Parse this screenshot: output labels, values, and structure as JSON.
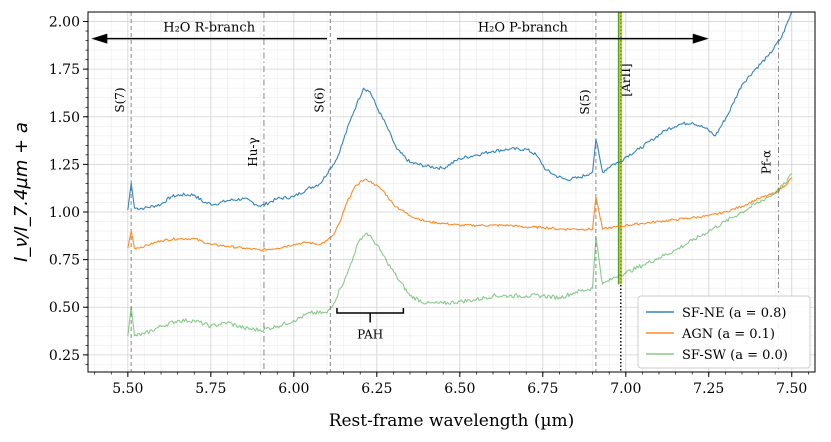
{
  "chart_data": {
    "type": "line",
    "xlabel": "Rest-frame wavelength (µm)",
    "ylabel": "I_ν/I_7.4µm + a",
    "xlim": [
      5.38,
      7.57
    ],
    "ylim": [
      0.16,
      2.05
    ],
    "xticks": [
      "5.50",
      "5.75",
      "6.00",
      "6.25",
      "6.50",
      "6.75",
      "7.00",
      "7.25",
      "7.50"
    ],
    "xtick_values": [
      5.5,
      5.75,
      6.0,
      6.25,
      6.5,
      6.75,
      7.0,
      7.25,
      7.5
    ],
    "yticks": [
      "0.25",
      "0.50",
      "0.75",
      "1.00",
      "1.25",
      "1.50",
      "1.75",
      "2.00"
    ],
    "ytick_values": [
      0.25,
      0.5,
      0.75,
      1.0,
      1.25,
      1.5,
      1.75,
      2.0
    ],
    "grid": true,
    "legend_position": "lower-right",
    "series": [
      {
        "name": "SF-NE (a = 0.8)",
        "color": "#1f77b4",
        "x": [
          5.5,
          5.51,
          5.52,
          5.55,
          5.6,
          5.63,
          5.66,
          5.7,
          5.73,
          5.76,
          5.8,
          5.85,
          5.9,
          5.95,
          6.0,
          6.04,
          6.08,
          6.11,
          6.13,
          6.15,
          6.17,
          6.19,
          6.21,
          6.23,
          6.25,
          6.28,
          6.31,
          6.35,
          6.4,
          6.45,
          6.5,
          6.55,
          6.6,
          6.65,
          6.7,
          6.73,
          6.76,
          6.79,
          6.82,
          6.86,
          6.9,
          6.91,
          6.93,
          6.96,
          6.98,
          7.0,
          7.04,
          7.08,
          7.12,
          7.16,
          7.2,
          7.24,
          7.27,
          7.31,
          7.35,
          7.39,
          7.43,
          7.47,
          7.5
        ],
        "y": [
          1.01,
          1.15,
          1.02,
          1.02,
          1.04,
          1.08,
          1.09,
          1.09,
          1.05,
          1.04,
          1.06,
          1.07,
          1.03,
          1.07,
          1.08,
          1.12,
          1.15,
          1.23,
          1.28,
          1.38,
          1.48,
          1.57,
          1.65,
          1.63,
          1.55,
          1.45,
          1.33,
          1.26,
          1.24,
          1.23,
          1.28,
          1.3,
          1.32,
          1.33,
          1.33,
          1.3,
          1.22,
          1.19,
          1.17,
          1.18,
          1.21,
          1.38,
          1.21,
          1.25,
          1.26,
          1.29,
          1.33,
          1.38,
          1.43,
          1.46,
          1.47,
          1.44,
          1.4,
          1.52,
          1.67,
          1.75,
          1.82,
          1.92,
          2.05
        ]
      },
      {
        "name": "AGN (a = 0.1)",
        "color": "#ff7f0e",
        "x": [
          5.5,
          5.51,
          5.52,
          5.55,
          5.6,
          5.65,
          5.7,
          5.75,
          5.8,
          5.85,
          5.9,
          5.95,
          6.0,
          6.04,
          6.08,
          6.1,
          6.12,
          6.14,
          6.16,
          6.18,
          6.2,
          6.22,
          6.24,
          6.27,
          6.3,
          6.35,
          6.4,
          6.45,
          6.5,
          6.55,
          6.6,
          6.65,
          6.7,
          6.75,
          6.8,
          6.85,
          6.9,
          6.91,
          6.93,
          6.96,
          6.98,
          7.0,
          7.05,
          7.1,
          7.15,
          7.2,
          7.25,
          7.3,
          7.35,
          7.4,
          7.45,
          7.48,
          7.5
        ],
        "y": [
          0.81,
          0.9,
          0.81,
          0.82,
          0.85,
          0.86,
          0.86,
          0.83,
          0.82,
          0.81,
          0.8,
          0.81,
          0.83,
          0.84,
          0.83,
          0.85,
          0.88,
          0.95,
          1.05,
          1.12,
          1.16,
          1.17,
          1.15,
          1.11,
          1.04,
          0.98,
          0.95,
          0.94,
          0.93,
          0.93,
          0.93,
          0.93,
          0.92,
          0.92,
          0.91,
          0.91,
          0.91,
          1.08,
          0.91,
          0.92,
          0.92,
          0.93,
          0.94,
          0.95,
          0.96,
          0.97,
          0.98,
          1.0,
          1.03,
          1.07,
          1.1,
          1.14,
          1.18
        ]
      },
      {
        "name": "SF-SW (a = 0.0)",
        "color": "#2ca02c",
        "x": [
          5.5,
          5.51,
          5.52,
          5.55,
          5.6,
          5.65,
          5.7,
          5.75,
          5.8,
          5.85,
          5.9,
          5.95,
          6.0,
          6.05,
          6.1,
          6.12,
          6.14,
          6.16,
          6.18,
          6.2,
          6.22,
          6.24,
          6.26,
          6.28,
          6.31,
          6.35,
          6.4,
          6.45,
          6.5,
          6.55,
          6.6,
          6.65,
          6.7,
          6.75,
          6.8,
          6.85,
          6.9,
          6.91,
          6.93,
          6.96,
          6.98,
          7.0,
          7.05,
          7.1,
          7.15,
          7.2,
          7.25,
          7.3,
          7.35,
          7.4,
          7.45,
          7.48,
          7.5
        ],
        "y": [
          0.35,
          0.5,
          0.35,
          0.36,
          0.4,
          0.43,
          0.43,
          0.4,
          0.42,
          0.39,
          0.38,
          0.4,
          0.43,
          0.47,
          0.47,
          0.52,
          0.6,
          0.67,
          0.77,
          0.86,
          0.89,
          0.85,
          0.8,
          0.74,
          0.66,
          0.56,
          0.52,
          0.52,
          0.53,
          0.54,
          0.56,
          0.56,
          0.56,
          0.56,
          0.55,
          0.58,
          0.6,
          0.87,
          0.62,
          0.65,
          0.67,
          0.68,
          0.72,
          0.76,
          0.8,
          0.85,
          0.9,
          0.95,
          1.0,
          1.05,
          1.1,
          1.15,
          1.2
        ]
      }
    ],
    "vlines": [
      {
        "x": 5.51,
        "label": "S(7)",
        "style": "dashed",
        "color": "#888888"
      },
      {
        "x": 5.91,
        "label": "Hu-γ",
        "style": "dashdot",
        "color": "#888888"
      },
      {
        "x": 6.11,
        "label": "S(6)",
        "style": "dashed",
        "color": "#888888"
      },
      {
        "x": 6.91,
        "label": "S(5)",
        "style": "dashed",
        "color": "#888888"
      },
      {
        "x": 6.985,
        "label": "[ArII]",
        "style": "dotted",
        "color": "#000000"
      },
      {
        "x": 7.46,
        "label": "Pf-α",
        "style": "dashdot",
        "color": "#888888"
      }
    ],
    "branches": [
      {
        "label": "H₂O R-branch",
        "x_from": 6.1,
        "x_to": 5.39,
        "y": 1.91,
        "arrow": "left"
      },
      {
        "label": "H₂O P-branch",
        "x_from": 6.13,
        "x_to": 7.25,
        "y": 1.91,
        "arrow": "right"
      }
    ],
    "pah": {
      "label": "PAH",
      "x_from": 6.13,
      "x_to": 6.33,
      "y": 0.47,
      "tick": 0.42
    }
  },
  "colors": {
    "sf_ne": "#1f77b4",
    "agn": "#ff7f0e",
    "sf_sw": "#2ca02c",
    "arii_fill": "#b5b000"
  }
}
